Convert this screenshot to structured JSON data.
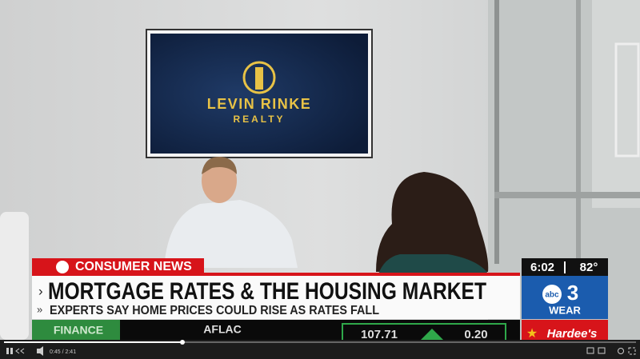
{
  "tv_screen": {
    "brand": "LEVIN RINKE",
    "sub": "REALTY"
  },
  "lower_third": {
    "section": "CONSUMER NEWS",
    "headline": "MORTGAGE RATES & THE HOUSING MARKET",
    "subhead": "EXPERTS SAY HOME PRICES COULD  RISE AS RATES FALL"
  },
  "station": {
    "time": "6:02",
    "temperature": "82°",
    "network": "abc",
    "channel": "3",
    "call_sign": "WEAR"
  },
  "ticker": {
    "segment": "FINANCE",
    "company": "AFLAC",
    "price": "107.71",
    "change": "0.20",
    "sponsor": "Hardee's"
  },
  "player": {
    "time": "0:45 / 2:41"
  }
}
